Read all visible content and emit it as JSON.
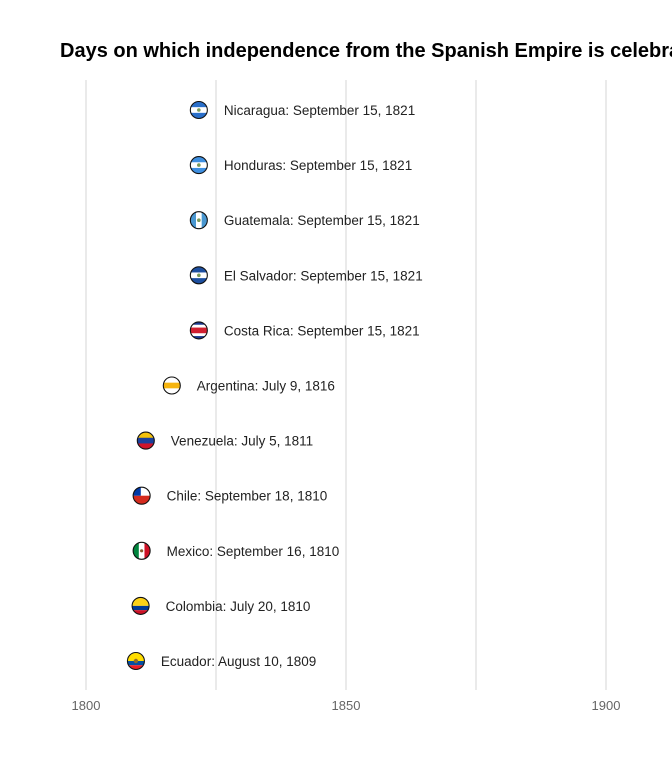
{
  "chart_data": {
    "type": "scatter",
    "title": "Days on which independence from the Spanish Empire is celebrat",
    "xlabel": "",
    "ylabel": "",
    "xlim": [
      1800,
      1912
    ],
    "x_ticks": [
      "1800",
      "1850",
      "1900"
    ],
    "grid": "vertical",
    "points": [
      {
        "country": "Nicaragua",
        "label": "Nicaragua: September 15, 1821",
        "x": 1821.7,
        "flag": "nicaragua",
        "colors": [
          "#2a6fc9",
          "#ffffff",
          "#2a6fc9"
        ]
      },
      {
        "country": "Honduras",
        "label": "Honduras: September 15, 1821",
        "x": 1821.7,
        "flag": "honduras",
        "colors": [
          "#3e8fe0",
          "#ffffff",
          "#3e8fe0"
        ]
      },
      {
        "country": "Guatemala",
        "label": "Guatemala: September 15, 1821",
        "x": 1821.7,
        "flag": "guatemala",
        "colors": [
          "#4997d0",
          "#ffffff",
          "#4997d0"
        ]
      },
      {
        "country": "El Salvador",
        "label": "El Salvador: September 15, 1821",
        "x": 1821.7,
        "flag": "el-salvador",
        "colors": [
          "#1d4fa0",
          "#ffffff",
          "#1d4fa0"
        ]
      },
      {
        "country": "Costa Rica",
        "label": "Costa Rica: September 15, 1821",
        "x": 1821.7,
        "flag": "costa-rica",
        "colors": [
          "#1b3a8f",
          "#ffffff",
          "#d22030",
          "#ffffff",
          "#1b3a8f"
        ]
      },
      {
        "country": "Argentina",
        "label": "Argentina: July 9, 1816",
        "x": 1816.5,
        "flag": "argentina",
        "colors": [
          "#ffffff",
          "#f6b40e",
          "#ffffff"
        ]
      },
      {
        "country": "Venezuela",
        "label": "Venezuela: July 5, 1811",
        "x": 1811.5,
        "flag": "venezuela",
        "colors": [
          "#f4c20d",
          "#1a3f9c",
          "#cf142b"
        ]
      },
      {
        "country": "Chile",
        "label": "Chile: September 18, 1810",
        "x": 1810.7,
        "flag": "chile",
        "colors": [
          "#ffffff",
          "#d52b1e"
        ]
      },
      {
        "country": "Mexico",
        "label": "Mexico: September 16, 1810",
        "x": 1810.7,
        "flag": "mexico",
        "colors": [
          "#00843d",
          "#ffffff",
          "#ce1126"
        ]
      },
      {
        "country": "Colombia",
        "label": "Colombia: July 20, 1810",
        "x": 1810.5,
        "flag": "colombia",
        "colors": [
          "#fcd116",
          "#003893",
          "#ce1126"
        ]
      },
      {
        "country": "Ecuador",
        "label": "Ecuador: August 10, 1809",
        "x": 1809.6,
        "flag": "ecuador",
        "colors": [
          "#ffdd00",
          "#034ea2",
          "#ed1c24"
        ]
      }
    ]
  }
}
